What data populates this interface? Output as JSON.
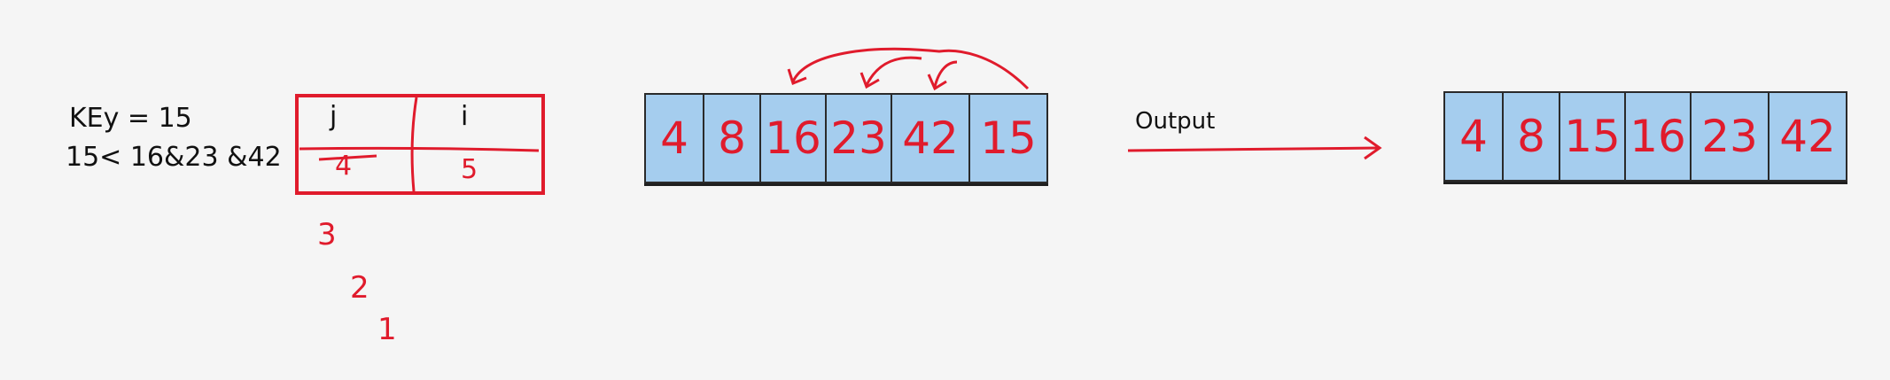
{
  "key_label": "KEy = 15",
  "comparison_note": "15< 16&23 &42",
  "table": {
    "col_j": "j",
    "col_i": "i",
    "j_value": "4",
    "i_value": "5"
  },
  "j_trace": [
    "3",
    "2",
    "1"
  ],
  "input_array": [
    "4",
    "8",
    "16",
    "23",
    "42",
    "15"
  ],
  "output_label": "Output",
  "output_array": [
    "4",
    "8",
    "15",
    "16",
    "23",
    "42"
  ],
  "colors": {
    "background": "#f5f5f5",
    "cell_fill": "#a5cdee",
    "ink_red": "#e01b2c",
    "ink_black": "#111111"
  }
}
